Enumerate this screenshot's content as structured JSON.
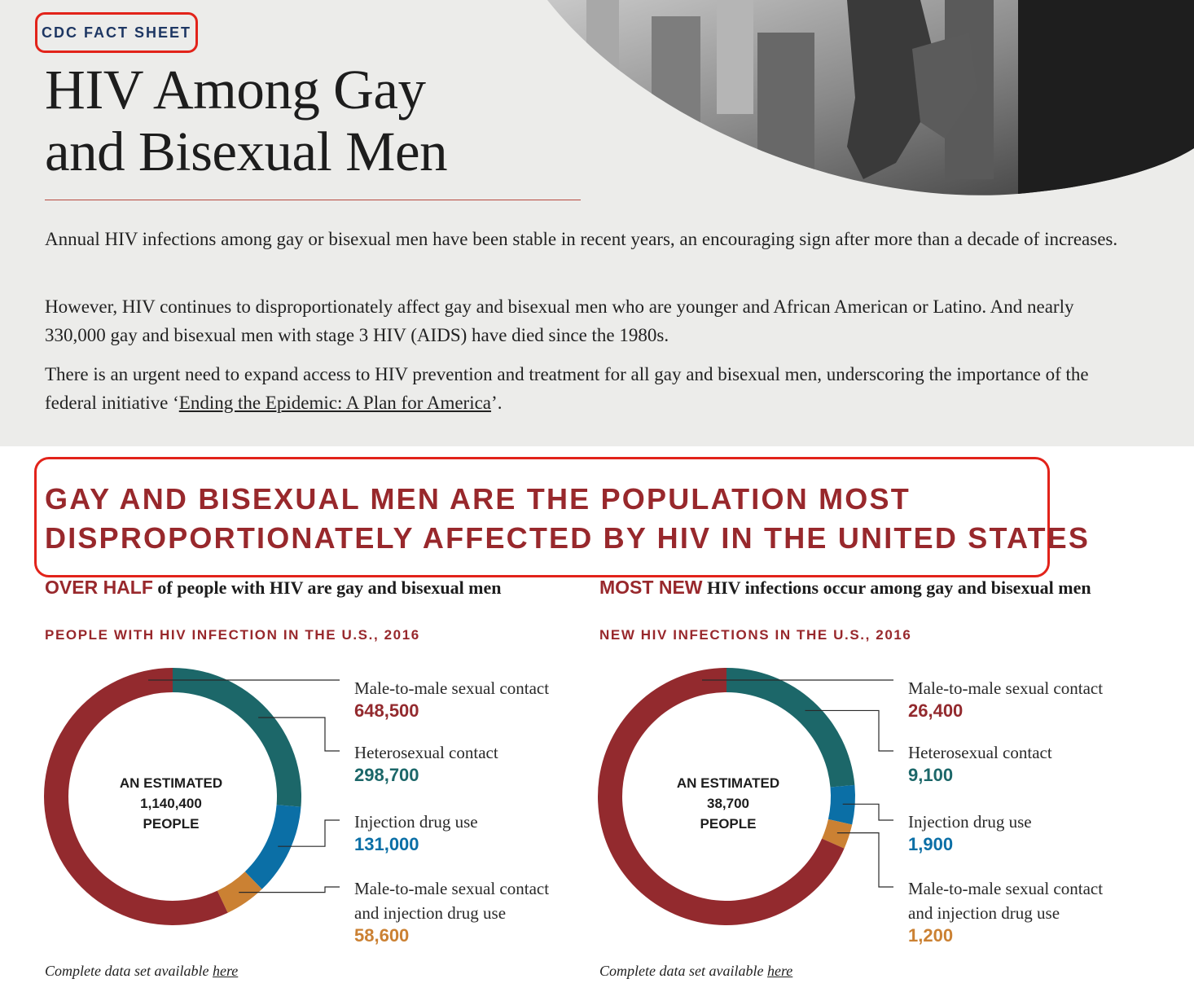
{
  "header": {
    "badge": "CDC FACT SHEET",
    "title_line1": "HIV Among Gay",
    "title_line2": "and Bisexual Men"
  },
  "intro": {
    "p1": "Annual HIV infections among gay or bisexual men have been stable in recent years, an encouraging sign after more than a decade of increases.",
    "p2": "However, HIV continues to disproportionately affect gay and bisexual men who are younger and African American or Latino. And nearly 330,000 gay and bisexual men with stage 3 HIV (AIDS) have died since the 1980s.",
    "p3_text": " There is an urgent need to expand access to HIV prevention and treatment for all gay and bisexual men, underscoring the importance of the federal initiative ‘",
    "p3_link": "Ending the Epidemic: A Plan for America",
    "p3_end": "’."
  },
  "section": {
    "headline_line1": "GAY AND BISEXUAL MEN ARE THE POPULATION MOST",
    "headline_line2": "DISPROPORTIONATELY AFFECTED BY HIV IN THE UNITED STATES"
  },
  "colors": {
    "male_to_male": "#932a2e",
    "heterosexual": "#1c6769",
    "injection": "#0b6fa6",
    "combined": "#cb8133",
    "accent": "#98282c",
    "annotation_highlight": "#e2231a"
  },
  "chart_data": [
    {
      "type": "pie",
      "lead_highlight": "OVER HALF",
      "lead_text": " of people with HIV are gay and bisexual men",
      "title": "PEOPLE WITH HIV INFECTION IN THE U.S., 2016",
      "center_line1": "AN ESTIMATED",
      "center_line2": "1,140,400",
      "center_line3": "PEOPLE",
      "categories": [
        "Male-to-male sexual contact",
        "Heterosexual contact",
        "Injection drug use",
        "Male-to-male sexual contact and injection drug use"
      ],
      "category_lines": [
        [
          "Male-to-male sexual contact"
        ],
        [
          "Heterosexual contact"
        ],
        [
          "Injection drug use"
        ],
        [
          "Male-to-male sexual contact",
          "and injection drug use"
        ]
      ],
      "values": [
        648500,
        298700,
        131000,
        58600
      ],
      "value_labels": [
        "648,500",
        "298,700",
        "131,000",
        "58,600"
      ],
      "source_text": "Complete data set available ",
      "source_link": "here"
    },
    {
      "type": "pie",
      "lead_highlight": "MOST NEW",
      "lead_text": " HIV infections occur among gay and bisexual men",
      "title": "NEW HIV INFECTIONS IN THE U.S., 2016",
      "center_line1": "AN ESTIMATED",
      "center_line2": "38,700",
      "center_line3": "PEOPLE",
      "categories": [
        "Male-to-male sexual contact",
        "Heterosexual contact",
        "Injection drug use",
        "Male-to-male sexual contact and injection drug use"
      ],
      "category_lines": [
        [
          "Male-to-male sexual contact"
        ],
        [
          "Heterosexual contact"
        ],
        [
          "Injection drug use"
        ],
        [
          "Male-to-male sexual contact",
          "and injection drug use"
        ]
      ],
      "values": [
        26400,
        9100,
        1900,
        1200
      ],
      "value_labels": [
        "26,400",
        "9,100",
        "1,900",
        "1,200"
      ],
      "source_text": "Complete data set available ",
      "source_link": "here"
    }
  ]
}
